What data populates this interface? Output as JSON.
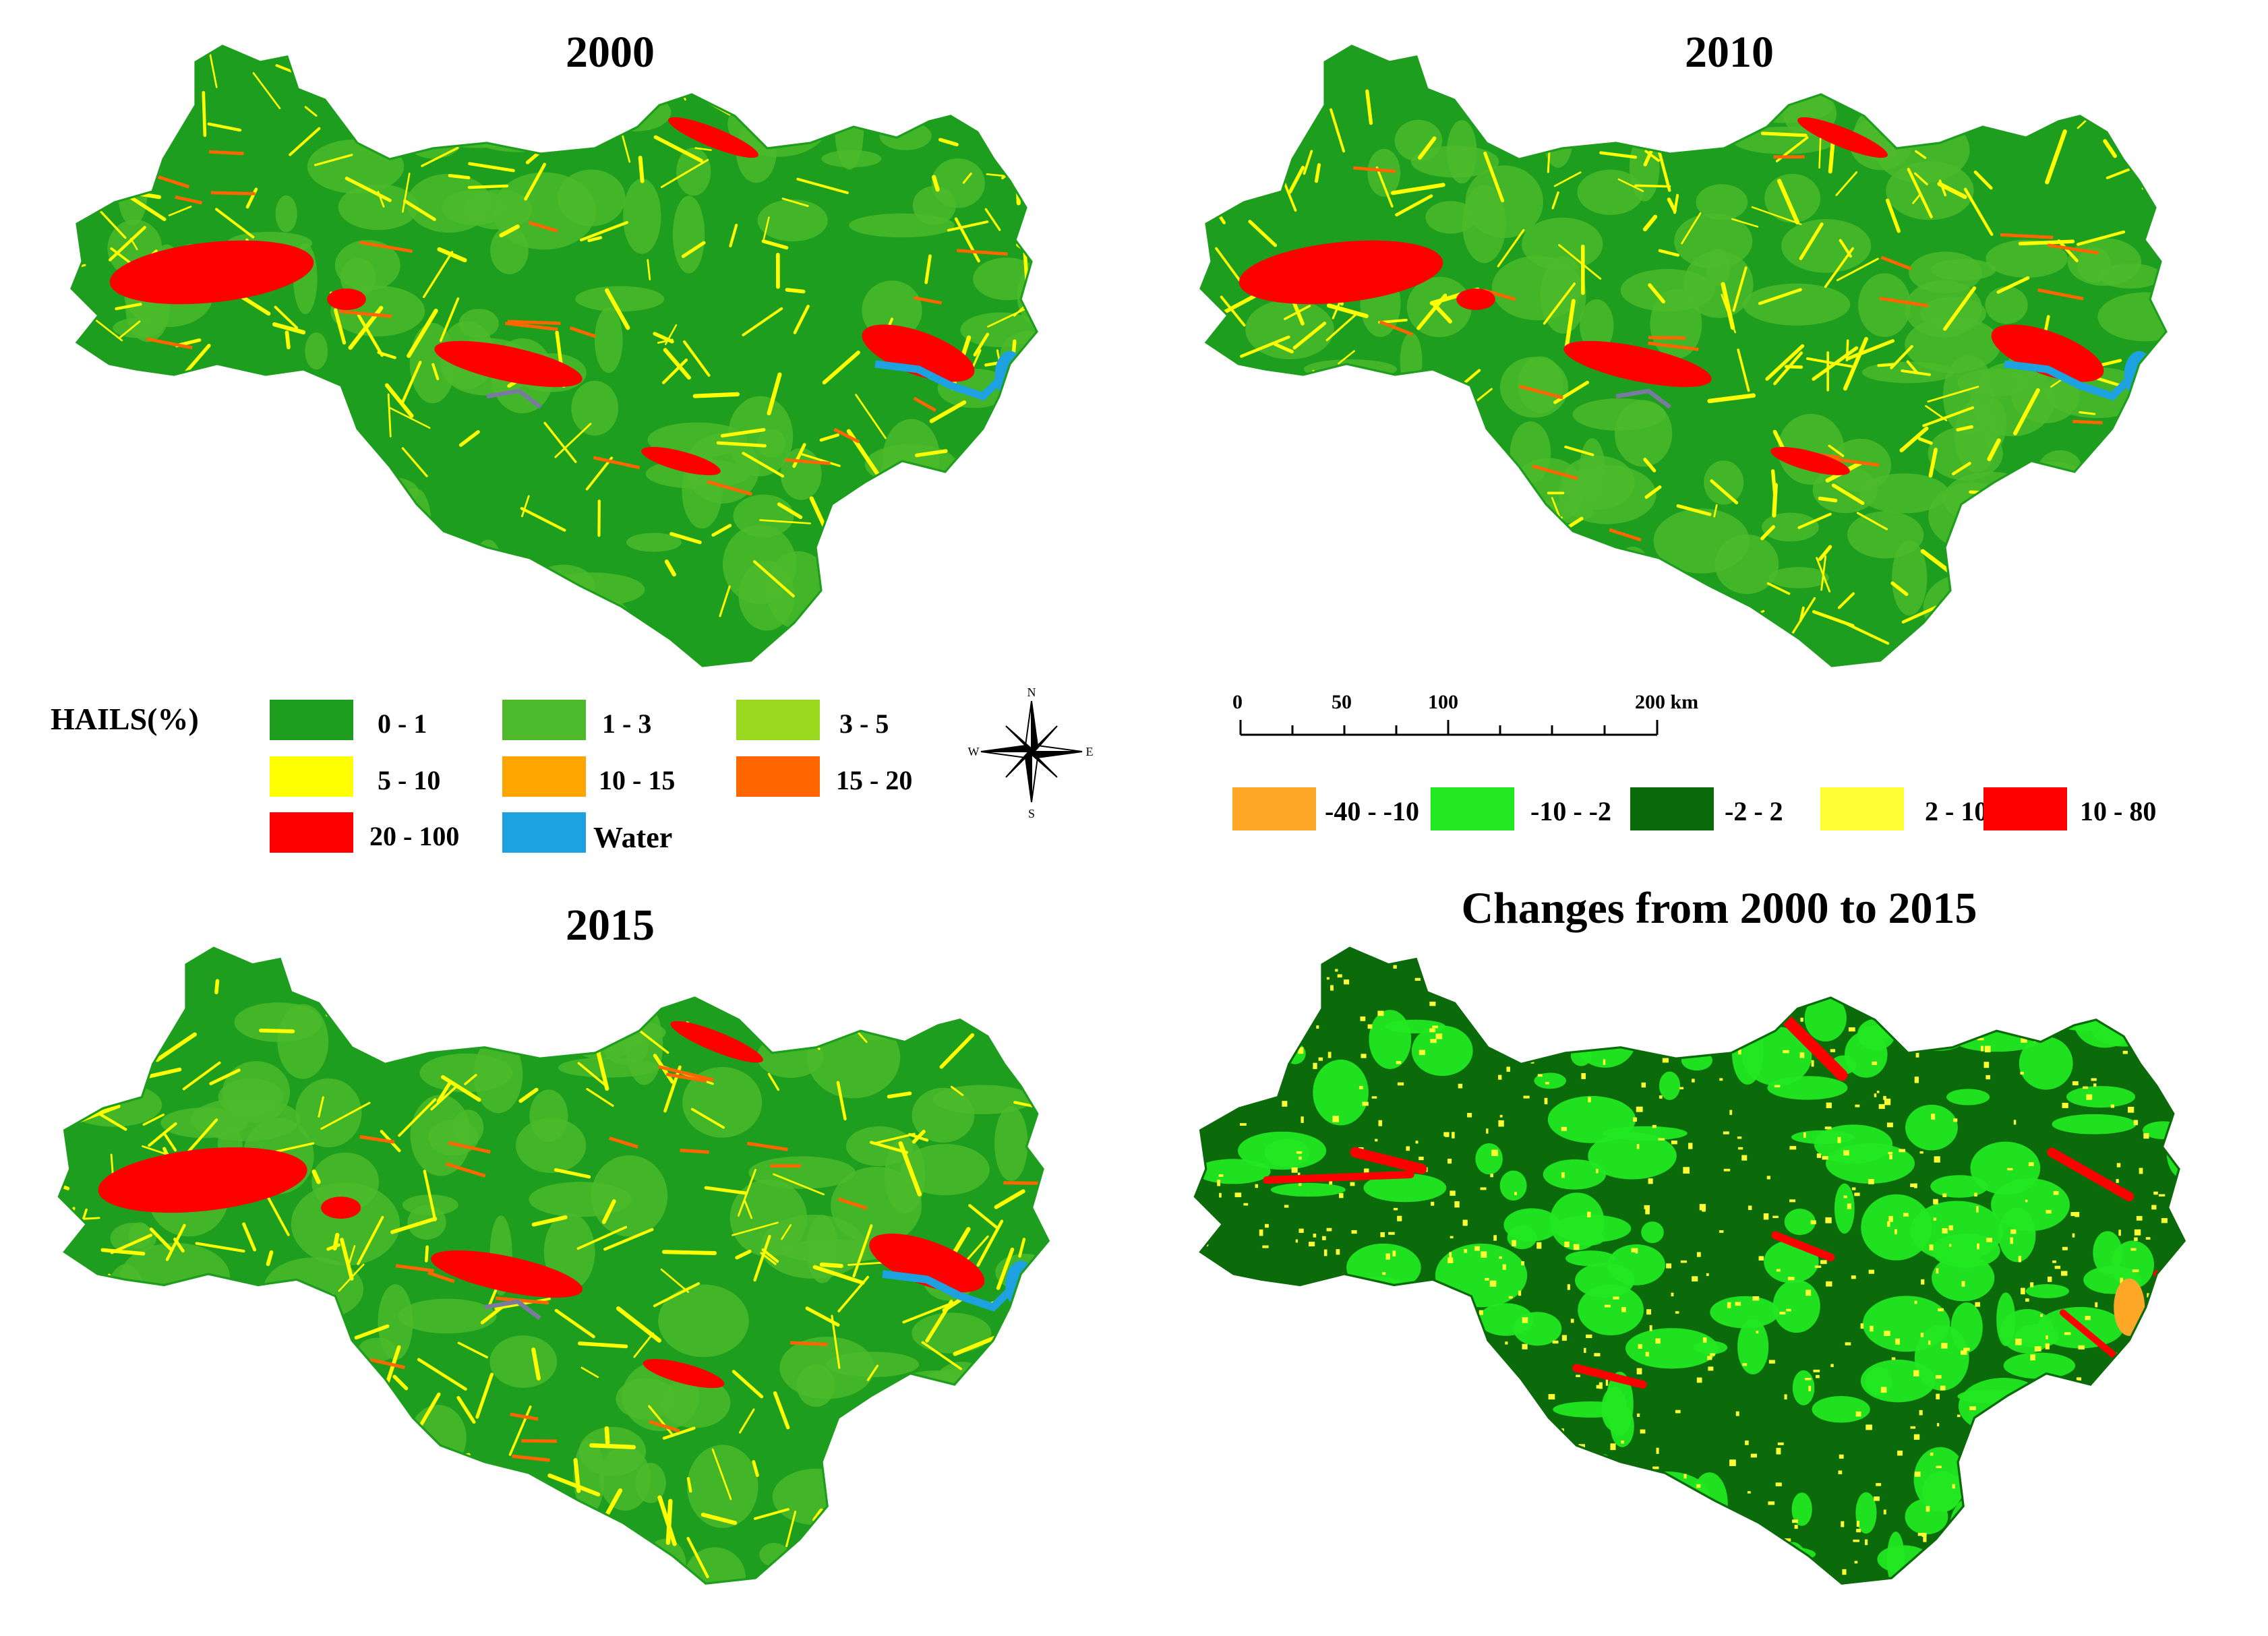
{
  "panels": {
    "p2000": {
      "title": "2000"
    },
    "p2010": {
      "title": "2010"
    },
    "p2015": {
      "title": "2015"
    },
    "change": {
      "title": "Changes from 2000 to 2015"
    }
  },
  "legend_hails": {
    "title": "HAILS(%)",
    "classes": [
      {
        "label": "0 - 1",
        "color": "#1e9e1e"
      },
      {
        "label": "1 - 3",
        "color": "#4cba2a"
      },
      {
        "label": "3 - 5",
        "color": "#9ad81e"
      },
      {
        "label": "5 - 10",
        "color": "#ffff00"
      },
      {
        "label": "10 - 15",
        "color": "#ffa500"
      },
      {
        "label": "15 - 20",
        "color": "#ff6600"
      },
      {
        "label": "20 - 100",
        "color": "#ff0000"
      },
      {
        "label": "Water",
        "color": "#1da1e0"
      }
    ]
  },
  "north_arrow": {
    "n": "N",
    "s": "S",
    "e": "E",
    "w": "W"
  },
  "scale_bar": {
    "ticks": [
      "0",
      "50",
      "100",
      "200 km"
    ]
  },
  "legend_change": {
    "classes": [
      {
        "label": "-40 - -10",
        "color": "#ffa726"
      },
      {
        "label": "-10 - -2",
        "color": "#22e822"
      },
      {
        "label": "-2 - 2",
        "color": "#0b6b0b"
      },
      {
        "label": "2 - 10",
        "color": "#ffff33"
      },
      {
        "label": "10 - 80",
        "color": "#ff0000"
      }
    ]
  }
}
